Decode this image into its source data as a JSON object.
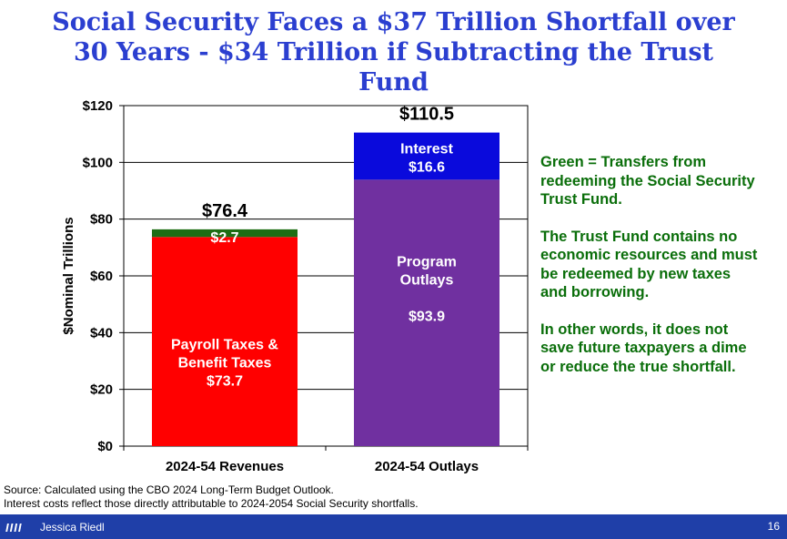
{
  "title": "Social Security Faces a $37 Trillion Shortfall over 30 Years - $34 Trillion if Subtracting the Trust Fund",
  "note": [
    "Green = Transfers from redeeming the Social Security Trust Fund.",
    "The Trust Fund contains no economic resources and must be redeemed by new taxes and borrowing.",
    "In other words, it does not save future taxpayers a dime or reduce the true shortfall."
  ],
  "source": [
    "Source: Calculated using the CBO 2024 Long-Term Budget Outlook.",
    "Interest costs reflect those directly attributable to 2024-2054 Social Security shortfalls."
  ],
  "footer": {
    "logo": "IIII",
    "author": "Jessica Riedl",
    "page": "16"
  },
  "colors": {
    "red": "#ff0000",
    "green": "#1e6e14",
    "purple": "#7030a0",
    "blue": "#0a0adc",
    "title": "#2b3fd0",
    "note": "#0a6e0a",
    "footer": "#1f3fa8"
  },
  "chart_data": {
    "type": "bar",
    "stacked": true,
    "title": "",
    "ylabel": "$Nominal Trillions",
    "xlabel": "",
    "ylim": [
      0,
      120
    ],
    "yticks": [
      "$0",
      "$20",
      "$40",
      "$60",
      "$80",
      "$100",
      "$120"
    ],
    "ytick_values": [
      0,
      20,
      40,
      60,
      80,
      100,
      120
    ],
    "categories": [
      "2024-54 Revenues",
      "2024-54 Outlays"
    ],
    "totals": [
      {
        "value": 76.4,
        "label": "$76.4"
      },
      {
        "value": 110.5,
        "label": "$110.5"
      }
    ],
    "segments": [
      {
        "category": 0,
        "name": "Payroll Taxes & Benefit Taxes",
        "value": 73.7,
        "color": "red",
        "label_lines": [
          "Payroll Taxes &",
          "Benefit Taxes",
          "$73.7"
        ]
      },
      {
        "category": 0,
        "name": "Trust Fund",
        "value": 2.7,
        "color": "green",
        "label_lines": [
          "$2.7"
        ]
      },
      {
        "category": 1,
        "name": "Program Outlays",
        "value": 93.9,
        "color": "purple",
        "label_lines": [
          "Program",
          "Outlays",
          "",
          "$93.9"
        ]
      },
      {
        "category": 1,
        "name": "Interest",
        "value": 16.6,
        "color": "blue",
        "label_lines": [
          "Interest",
          "$16.6"
        ]
      }
    ]
  }
}
